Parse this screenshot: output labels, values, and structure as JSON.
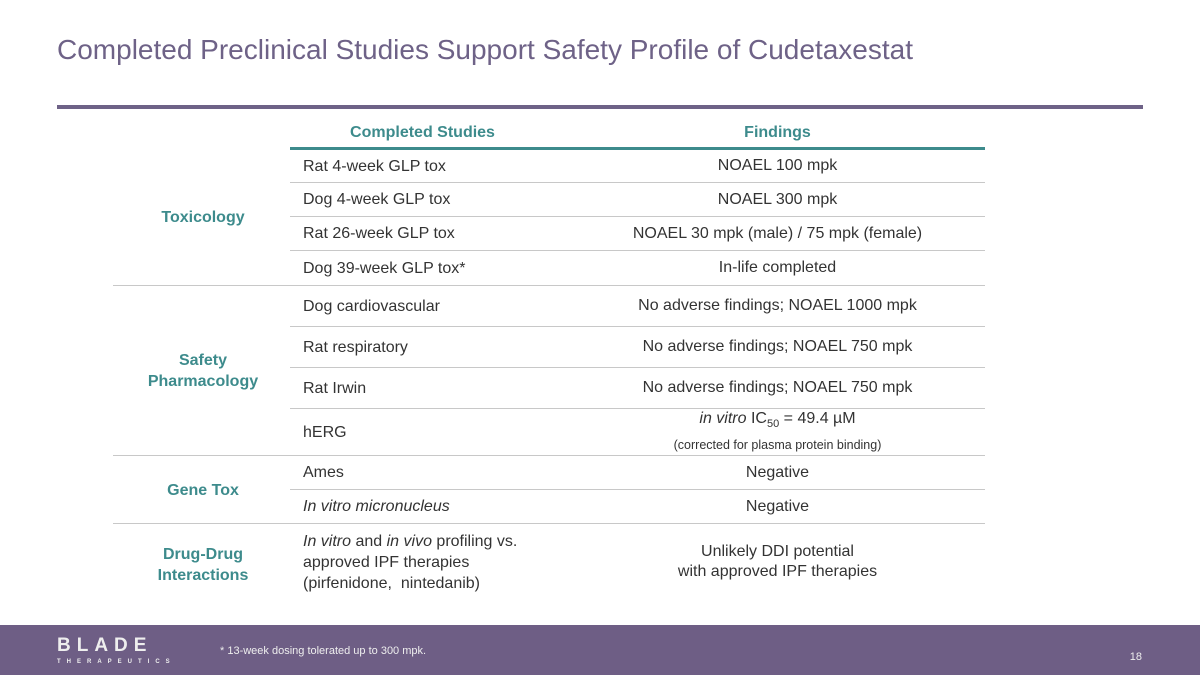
{
  "title": "Completed Preclinical Studies Support Safety Profile of Cudetaxestat",
  "headers": {
    "studies": "Completed Studies",
    "findings": "Findings"
  },
  "categories": {
    "tox": "Toxicology",
    "safety1": "Safety",
    "safety2": "Pharmacology",
    "gene": "Gene Tox",
    "ddi1": "Drug-Drug",
    "ddi2": "Interactions"
  },
  "rows": [
    {
      "study": "Rat 4-week GLP tox",
      "finding": "NOAEL 100 mpk"
    },
    {
      "study": "Dog 4-week GLP tox",
      "finding": "NOAEL 300 mpk"
    },
    {
      "study": "Rat 26-week GLP tox",
      "finding": "NOAEL 30 mpk (male) / 75 mpk (female)"
    },
    {
      "study": "Dog 39-week GLP tox*",
      "finding": "In-life completed"
    },
    {
      "study": "Dog cardiovascular",
      "finding": "No adverse findings; NOAEL 1000 mpk"
    },
    {
      "study": "Rat respiratory",
      "finding": "No adverse findings; NOAEL 750 mpk"
    },
    {
      "study": "Rat Irwin",
      "finding": "No adverse findings; NOAEL 750 mpk"
    },
    {
      "study": "hERG",
      "finding_italic": "in vitro",
      "finding_ic": " IC",
      "finding_sub": "50",
      "finding_rest": " = 49.4 µM",
      "finding_note": "(corrected for plasma protein binding)"
    },
    {
      "study": "Ames",
      "finding": "Negative"
    },
    {
      "study": "In vitro micronucleus",
      "finding": "Negative"
    },
    {
      "study_i1": "In vitro",
      "study_t1": " and ",
      "study_i2": "in vivo",
      "study_t2": " profiling vs.",
      "study_l2": "approved IPF therapies",
      "study_l3": "(pirfenidone,  nintedanib)",
      "finding_l1": "Unlikely DDI potential",
      "finding_l2": "with approved IPF therapies"
    }
  ],
  "footer": {
    "logo": "BLADE",
    "logo_sub": "THERAPEUTICS",
    "note": "* 13-week dosing tolerated up to 300 mpk.",
    "page": "18"
  }
}
